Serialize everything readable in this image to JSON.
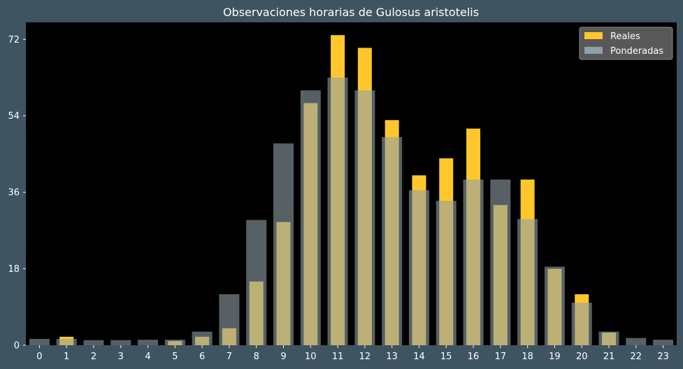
{
  "chart_data": {
    "type": "bar",
    "title": "Observaciones horarias de Gulosus aristotelis",
    "xlabel": "",
    "ylabel": "",
    "categories": [
      "0",
      "1",
      "2",
      "3",
      "4",
      "5",
      "6",
      "7",
      "8",
      "9",
      "10",
      "11",
      "12",
      "13",
      "14",
      "15",
      "16",
      "17",
      "18",
      "19",
      "20",
      "21",
      "22",
      "23"
    ],
    "ylim": [
      0,
      76
    ],
    "yticks": [
      0,
      18,
      36,
      54,
      72
    ],
    "grid": false,
    "legend_position": "top-right",
    "series": [
      {
        "name": "Reales",
        "color": "#ffc72c",
        "values": [
          0,
          2,
          0,
          0,
          0,
          1,
          2,
          4,
          15,
          29,
          57,
          73,
          70,
          53,
          40,
          44,
          51,
          33,
          39,
          18,
          12,
          3,
          0,
          0
        ]
      },
      {
        "name": "Ponderadas",
        "color": "#8fa0a8",
        "values": [
          1.5,
          1.5,
          1.2,
          1.2,
          1.3,
          1.3,
          3.2,
          12,
          29.5,
          47.5,
          60,
          63,
          60,
          49,
          36.5,
          34,
          39,
          39,
          29.7,
          18.5,
          10,
          3.2,
          1.7,
          1.3
        ]
      }
    ]
  }
}
